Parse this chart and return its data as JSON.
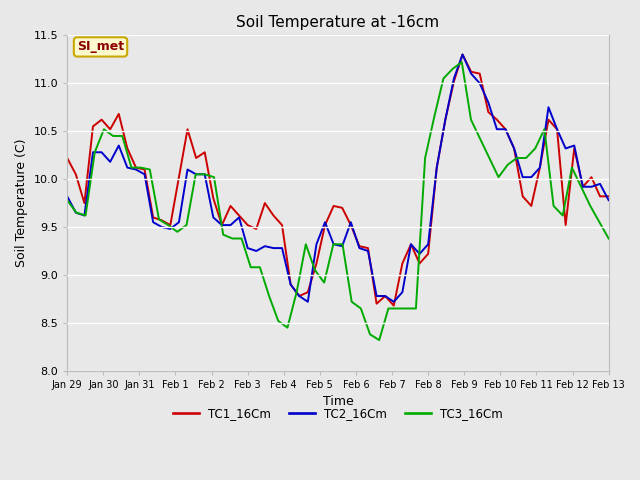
{
  "title": "Soil Temperature at -16cm",
  "xlabel": "Time",
  "ylabel": "Soil Temperature (C)",
  "ylim": [
    8.0,
    11.5
  ],
  "annotation_text": "SI_met",
  "annotation_color": "#8B0000",
  "annotation_bg": "#FFFACD",
  "annotation_border": "#C8A800",
  "tc1_color": "#CC0000",
  "tc2_color": "#0000CC",
  "tc3_color": "#00AA00",
  "tc1_label": "TC1_16Cm",
  "tc2_label": "TC2_16Cm",
  "tc3_label": "TC3_16Cm",
  "xtick_labels": [
    "Jan 29",
    "Jan 30",
    "Jan 31",
    "Feb 1",
    "Feb 2",
    "Feb 3",
    "Feb 4",
    "Feb 5",
    "Feb 6",
    "Feb 7",
    "Feb 8",
    "Feb 9",
    "Feb 10",
    "Feb 11",
    "Feb 12",
    "Feb 13"
  ],
  "background_color": "#E8E8E8",
  "grid_color": "#FFFFFF",
  "linewidth": 1.4,
  "tc1_y": [
    10.22,
    10.05,
    9.75,
    10.55,
    10.62,
    10.52,
    10.68,
    10.32,
    10.12,
    10.1,
    9.6,
    9.57,
    9.52,
    10.02,
    10.52,
    10.22,
    10.28,
    9.8,
    9.52,
    9.72,
    9.62,
    9.52,
    9.48,
    9.75,
    9.62,
    9.52,
    8.9,
    8.78,
    8.82,
    9.12,
    9.52,
    9.72,
    9.7,
    9.52,
    9.3,
    9.28,
    8.7,
    8.78,
    8.68,
    9.12,
    9.32,
    9.12,
    9.22,
    10.12,
    10.62,
    11.02,
    11.3,
    11.12,
    11.1,
    10.7,
    10.62,
    10.52,
    10.32,
    9.82,
    9.72,
    10.12,
    10.62,
    10.52,
    9.52,
    10.32,
    9.92,
    10.02,
    9.82,
    9.82
  ],
  "tc2_y": [
    9.82,
    9.65,
    9.62,
    10.28,
    10.28,
    10.18,
    10.35,
    10.12,
    10.1,
    10.05,
    9.55,
    9.5,
    9.48,
    9.55,
    10.1,
    10.05,
    10.05,
    9.6,
    9.52,
    9.52,
    9.6,
    9.28,
    9.25,
    9.3,
    9.28,
    9.28,
    8.9,
    8.78,
    8.72,
    9.32,
    9.55,
    9.32,
    9.3,
    9.55,
    9.28,
    9.25,
    8.78,
    8.78,
    8.72,
    8.82,
    9.32,
    9.22,
    9.32,
    10.12,
    10.62,
    11.05,
    11.3,
    11.1,
    11.0,
    10.8,
    10.52,
    10.52,
    10.32,
    10.02,
    10.02,
    10.12,
    10.75,
    10.52,
    10.32,
    10.35,
    9.92,
    9.92,
    9.95,
    9.78
  ],
  "tc3_y": [
    9.78,
    9.65,
    9.62,
    10.28,
    10.52,
    10.45,
    10.45,
    10.12,
    10.12,
    10.1,
    9.58,
    9.52,
    9.45,
    9.52,
    10.05,
    10.05,
    10.02,
    9.42,
    9.38,
    9.38,
    9.08,
    9.08,
    8.78,
    8.52,
    8.45,
    8.82,
    9.32,
    9.05,
    8.92,
    9.32,
    9.32,
    8.72,
    8.65,
    8.38,
    8.32,
    8.65,
    8.65,
    8.65,
    8.65,
    10.22,
    10.65,
    11.05,
    11.15,
    11.22,
    10.62,
    10.42,
    10.22,
    10.02,
    10.15,
    10.22,
    10.22,
    10.32,
    10.52,
    9.72,
    9.62,
    10.12,
    9.92,
    9.72,
    9.55,
    9.38
  ]
}
